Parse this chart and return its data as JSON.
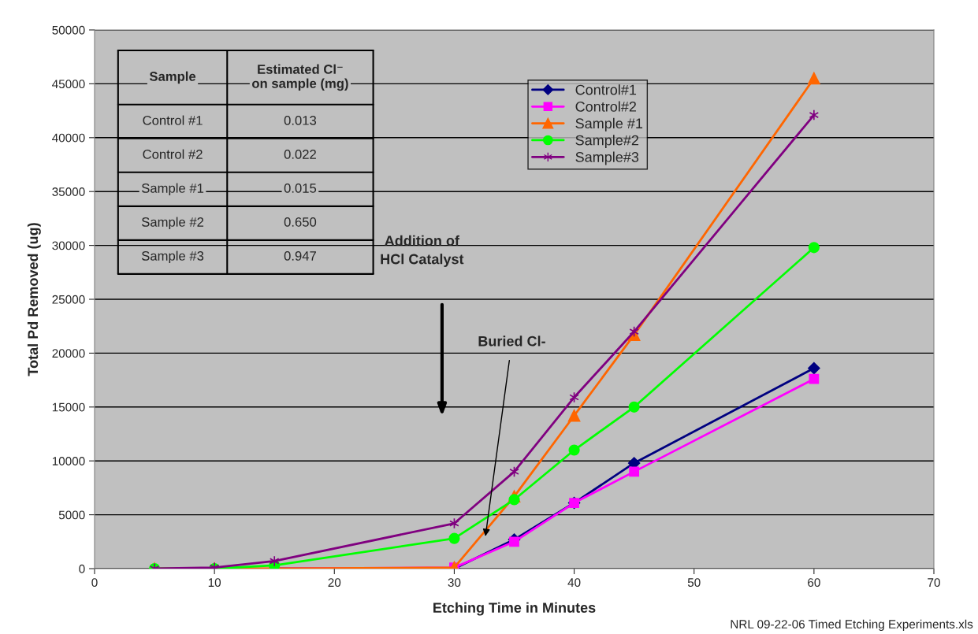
{
  "chart_data": {
    "type": "line",
    "xlabel": "Etching Time in Minutes",
    "ylabel": "Total Pd Removed (ug)",
    "x": [
      5,
      10,
      15,
      30,
      35,
      40,
      45,
      60
    ],
    "series": [
      {
        "name": "Control#1",
        "color": "#000080",
        "marker": "diamond",
        "values": [
          null,
          null,
          0,
          0,
          2700,
          6100,
          9800,
          18600
        ]
      },
      {
        "name": "Control#2",
        "color": "#ff00ff",
        "marker": "square",
        "values": [
          null,
          null,
          0,
          100,
          2500,
          6100,
          9000,
          17600
        ]
      },
      {
        "name": "Sample #1",
        "color": "#ff6600",
        "marker": "triangle",
        "values": [
          0,
          0,
          0,
          100,
          6700,
          14200,
          21700,
          45500
        ]
      },
      {
        "name": "Sample#2",
        "color": "#00ff00",
        "marker": "circle",
        "values": [
          0,
          0,
          300,
          2800,
          6400,
          11000,
          15000,
          29800
        ]
      },
      {
        "name": "Sample#3",
        "color": "#800080",
        "marker": "cross",
        "values": [
          0,
          100,
          700,
          4200,
          9000,
          15900,
          22000,
          42100
        ]
      }
    ],
    "xlim": [
      0,
      70
    ],
    "xticks": [
      0,
      10,
      20,
      30,
      40,
      50,
      60,
      70
    ],
    "ylim": [
      0,
      50000
    ],
    "yticks": [
      0,
      5000,
      10000,
      15000,
      20000,
      25000,
      30000,
      35000,
      40000,
      45000,
      50000
    ],
    "grid": "y",
    "legend": "top",
    "annotations": [
      "Addition of\nHCl Catalyst",
      {
        "text": "Buried Cl-",
        "x": 32.6,
        "y": 3000
      },
      "Sample",
      "Estimated Cl⁻\non sample (mg)",
      "Control #1",
      "0.013",
      "Control #2",
      "0.022",
      "Sample #1",
      "0.015",
      "Sample #2",
      "0.650",
      "Sample #3",
      "0.947",
      "NRL 09-22-06 Timed Etching Experiments.xls"
    ]
  }
}
